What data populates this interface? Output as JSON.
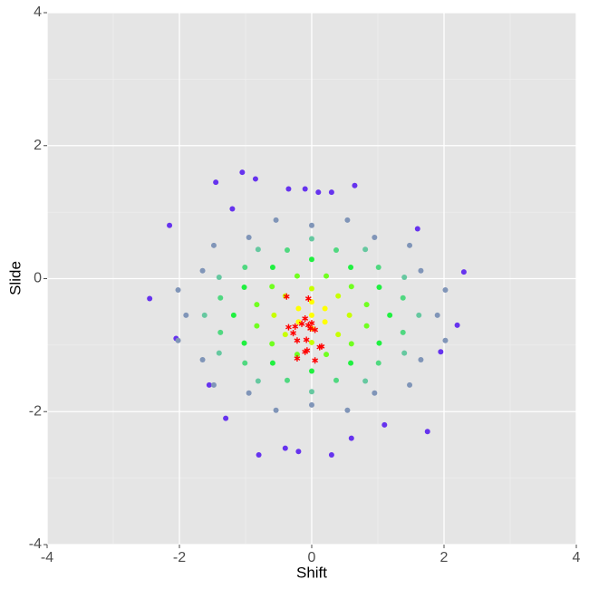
{
  "chart_data": {
    "type": "scatter",
    "x_label": "Shift",
    "y_label": "Slide",
    "xlim": [
      -4,
      4
    ],
    "ylim": [
      -4,
      4
    ],
    "xticks": [
      -4,
      -2,
      0,
      2,
      4
    ],
    "yticks": [
      -4,
      -2,
      0,
      2,
      4
    ],
    "grid": true,
    "series": [
      {
        "color": "#6633ee",
        "marker": "dot",
        "x": [
          -1.05,
          -0.85,
          -1.45,
          0.65,
          -2.15,
          -2.45,
          1.75,
          -0.8,
          -0.4,
          0.3,
          -0.35,
          0.1,
          0.3,
          2.3,
          2.2,
          -1.55,
          -1.3,
          0.6,
          1.1,
          -2.05,
          1.95,
          -0.1,
          -0.2,
          -1.2,
          1.6
        ],
        "y": [
          1.6,
          1.5,
          1.45,
          1.4,
          0.8,
          -0.3,
          -2.3,
          -2.65,
          -2.55,
          -2.65,
          1.35,
          1.3,
          1.3,
          0.1,
          -0.7,
          -1.6,
          -2.1,
          -2.4,
          -2.2,
          -0.9,
          -1.1,
          1.35,
          -2.6,
          1.05,
          0.75
        ]
      },
      {
        "color": "#8095b8",
        "marker": "dot",
        "x": [
          1.9,
          1.65,
          0.95,
          0,
          -0.95,
          -1.65,
          -1.9,
          -1.65,
          -0.95,
          0,
          0.95,
          1.65,
          2.02,
          1.48,
          0.54,
          -0.54,
          -1.48,
          -2.02,
          -2.02,
          -1.48,
          -0.54,
          0.54,
          1.48,
          2.02
        ],
        "y": [
          -0.55,
          0.12,
          0.62,
          0.8,
          0.62,
          0.12,
          -0.55,
          -1.22,
          -1.72,
          -1.9,
          -1.72,
          -1.22,
          -0.17,
          0.5,
          0.88,
          0.88,
          0.5,
          -0.17,
          -0.93,
          -1.6,
          -1.98,
          -1.98,
          -1.6,
          -0.93
        ]
      },
      {
        "color": "#66c8a0",
        "marker": "dot",
        "x": [
          1.62,
          1.4,
          0.81,
          0,
          -0.81,
          -1.4,
          -1.62,
          -1.4,
          -0.81,
          0,
          0.81,
          1.4
        ],
        "y": [
          -0.55,
          0.02,
          0.44,
          0.6,
          0.44,
          0.02,
          -0.55,
          -1.12,
          -1.54,
          -1.7,
          -1.54,
          -1.12
        ]
      },
      {
        "color": "#50d880",
        "marker": "dot",
        "x": [
          1.38,
          1.01,
          0.37,
          -0.37,
          -1.01,
          -1.38,
          -1.38,
          -1.01,
          -0.37,
          0.37,
          1.01,
          1.38
        ],
        "y": [
          -0.29,
          0.17,
          0.43,
          0.43,
          0.17,
          -0.29,
          -0.81,
          -1.27,
          -1.53,
          -1.53,
          -1.27,
          -0.81
        ]
      },
      {
        "color": "#20f040",
        "marker": "dot",
        "x": [
          1.18,
          1.02,
          0.59,
          0,
          -0.59,
          -1.02,
          -1.18,
          -1.02,
          -0.59,
          0,
          0.59,
          1.02
        ],
        "y": [
          -0.55,
          -0.13,
          0.17,
          0.29,
          0.17,
          -0.13,
          -0.55,
          -0.97,
          -1.27,
          -1.39,
          -1.27,
          -0.97
        ]
      },
      {
        "color": "#70ff20",
        "marker": "dot",
        "x": [
          0.83,
          0.6,
          0.22,
          -0.22,
          -0.6,
          -0.83,
          -0.83,
          -0.6,
          -0.22,
          0.22,
          0.6,
          0.83
        ],
        "y": [
          -0.39,
          -0.12,
          0.04,
          0.04,
          -0.12,
          -0.39,
          -0.71,
          -0.98,
          -1.14,
          -1.14,
          -0.98,
          -0.71
        ]
      },
      {
        "color": "#c8ff00",
        "marker": "dot",
        "x": [
          0.57,
          0.4,
          0,
          -0.4,
          -0.57,
          -0.4,
          0,
          0.4
        ],
        "y": [
          -0.55,
          -0.26,
          -0.15,
          -0.26,
          -0.55,
          -0.84,
          -0.96,
          -0.84
        ]
      },
      {
        "color": "#ffff00",
        "marker": "dot",
        "x": [
          0,
          0.2,
          -0.2,
          0.2,
          -0.2,
          0,
          0
        ],
        "y": [
          -0.55,
          -0.45,
          -0.45,
          -0.65,
          -0.65,
          -0.35,
          -0.75
        ]
      },
      {
        "color": "#ff0000",
        "marker": "asterisk",
        "x": [
          -0.38,
          -0.05,
          -0.35,
          -0.25,
          -0.1,
          -0.05,
          0.0,
          -0.02,
          0.05,
          -0.28,
          -0.22,
          -0.08,
          0.12,
          0.15,
          -0.07,
          -0.1,
          -0.22,
          0.05,
          -0.15
        ],
        "y": [
          -0.27,
          -0.3,
          -0.73,
          -0.72,
          -0.6,
          -0.7,
          -0.67,
          -0.75,
          -0.77,
          -0.82,
          -0.93,
          -0.92,
          -1.03,
          -1.02,
          -1.08,
          -1.1,
          -1.2,
          -1.23,
          -0.68
        ]
      }
    ]
  }
}
